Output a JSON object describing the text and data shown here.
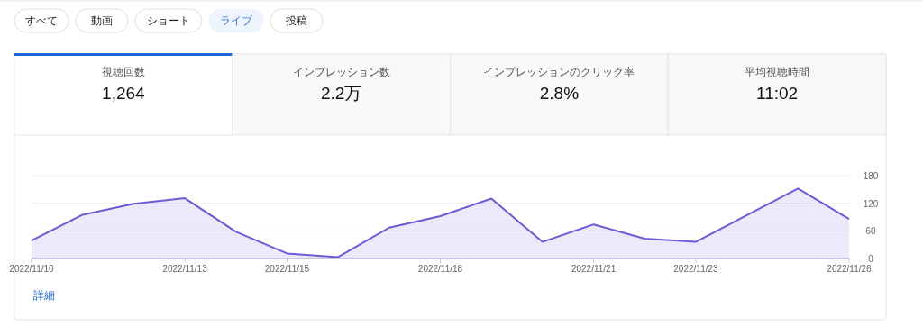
{
  "chart_data": {
    "type": "area",
    "x": [
      "2022-11-10",
      "2022-11-11",
      "2022-11-12",
      "2022-11-13",
      "2022-11-14",
      "2022-11-15",
      "2022-11-16",
      "2022-11-17",
      "2022-11-18",
      "2022-11-19",
      "2022-11-20",
      "2022-11-21",
      "2022-11-22",
      "2022-11-23",
      "2022-11-24",
      "2022-11-25",
      "2022-11-26"
    ],
    "series": [
      {
        "color": "#6b5bd6",
        "values": [
          39,
          95,
          119,
          131,
          58,
          11,
          3,
          67,
          92,
          130,
          36,
          74,
          43,
          36,
          94,
          152,
          86
        ]
      }
    ],
    "xlim": [
      "2022-11-10",
      "2022-11-26"
    ],
    "xticks": [
      {
        "value": "2022-11-10",
        "label": "2022/11/10"
      },
      {
        "value": "2022-11-13",
        "label": "2022/11/13"
      },
      {
        "value": "2022-11-15",
        "label": "2022/11/15"
      },
      {
        "value": "2022-11-18",
        "label": "2022/11/18"
      },
      {
        "value": "2022-11-21",
        "label": "2022/11/21"
      },
      {
        "value": "2022-11-23",
        "label": "2022/11/23"
      },
      {
        "value": "2022-11-26",
        "label": "2022/11/26"
      }
    ],
    "ylim": [
      0,
      180
    ],
    "yticks": [
      0,
      60,
      120,
      180
    ],
    "grid": "y",
    "marker": "none",
    "line_style": "solid",
    "annotations": [
      "すべて",
      "動画",
      "ショート",
      "ライブ",
      "投稿",
      "視聴回数",
      "1,264",
      "インプレッション数",
      "2.2万",
      "インプレッションのクリック率",
      "2.8%",
      "平均視聴時間",
      "11:02",
      "詳細"
    ]
  }
}
